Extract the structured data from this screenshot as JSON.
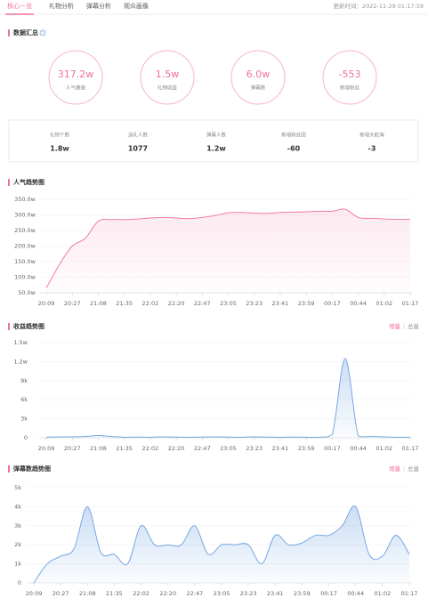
{
  "tabs": [
    "核心一览",
    "礼物分析",
    "弹幕分析",
    "观众画像"
  ],
  "update_time": "更新时间：2022-11-29 01:17:59",
  "summary": {
    "title": "数据汇总",
    "help": "?",
    "circles": [
      {
        "value": "317.2w",
        "label": "人气峰值"
      },
      {
        "value": "1.5w",
        "label": "礼物收益"
      },
      {
        "value": "6.0w",
        "label": "弹幕数"
      },
      {
        "value": "-553",
        "label": "新增粉丝"
      }
    ],
    "stats": [
      {
        "label": "礼物个数",
        "value": "1.8w"
      },
      {
        "label": "送礼人数",
        "value": "1077"
      },
      {
        "label": "弹幕人数",
        "value": "1.2w"
      },
      {
        "label": "新增粉丝团",
        "value": "-60"
      },
      {
        "label": "新增大航海",
        "value": "-3"
      }
    ]
  },
  "chart_data": [
    {
      "type": "line",
      "title": "人气趋势图",
      "color": "#f0729a",
      "grid": true,
      "categories": [
        "20:09",
        null,
        "20:27",
        null,
        "21:08",
        null,
        "21:35",
        null,
        "22:02",
        null,
        "22:20",
        null,
        "22:47",
        null,
        "23:05",
        null,
        "23:23",
        null,
        "23:41",
        null,
        "23:59",
        null,
        "00:17",
        null,
        "00:44",
        null,
        "01:02",
        null,
        "01:17"
      ],
      "values": [
        65,
        140,
        200,
        225,
        280,
        285,
        285,
        287,
        290,
        292,
        290,
        288,
        292,
        298,
        307,
        308,
        306,
        305,
        308,
        309,
        310,
        312,
        312,
        318,
        292,
        289,
        287,
        286,
        286
      ],
      "ylim": [
        50,
        350
      ],
      "yticks": [
        {
          "value": 50,
          "label": "50.0w"
        },
        {
          "value": 100,
          "label": "100.0w"
        },
        {
          "value": 150,
          "label": "150.0w"
        },
        {
          "value": 200,
          "label": "200.0w"
        },
        {
          "value": 250,
          "label": "250.0w"
        },
        {
          "value": 300,
          "label": "300.0w"
        },
        {
          "value": 350,
          "label": "350.0w"
        }
      ]
    },
    {
      "type": "line",
      "title": "收益趋势图",
      "toggle": [
        "增量",
        "总量"
      ],
      "color": "#6a9fe0",
      "grid": true,
      "categories": [
        "20:09",
        null,
        "20:27",
        null,
        "21:08",
        null,
        "21:35",
        null,
        "22:02",
        null,
        "22:20",
        null,
        "22:47",
        null,
        "23:05",
        null,
        "23:23",
        null,
        "23:41",
        null,
        "23:59",
        null,
        "00:17",
        null,
        "00:44",
        null,
        "01:02",
        null,
        "01:17"
      ],
      "values": [
        100,
        150,
        150,
        200,
        350,
        200,
        100,
        120,
        100,
        150,
        120,
        100,
        130,
        150,
        120,
        100,
        150,
        120,
        100,
        120,
        100,
        100,
        500,
        12500,
        300,
        200,
        150,
        100,
        100
      ],
      "ylim": [
        0,
        15000
      ],
      "yticks": [
        0,
        {
          "value": 3000,
          "label": "3k"
        },
        {
          "value": 6000,
          "label": "6k"
        },
        {
          "value": 9000,
          "label": "9k"
        },
        {
          "value": 12000,
          "label": "1.2w"
        },
        {
          "value": 15000,
          "label": "1.5w"
        }
      ]
    },
    {
      "type": "line",
      "title": "弹幕数趋势图",
      "toggle": [
        "增量",
        "总量"
      ],
      "color": "#6a9fe0",
      "grid": true,
      "categories": [
        "20:09",
        null,
        "20:27",
        null,
        "21:08",
        null,
        "21:35",
        null,
        "22:02",
        null,
        "22:20",
        null,
        "22:47",
        null,
        "23:05",
        null,
        "23:23",
        null,
        "23:41",
        null,
        "23:59",
        null,
        "00:17",
        null,
        "00:44",
        null,
        "01:02",
        null,
        "01:17"
      ],
      "values": [
        0,
        1000,
        1400,
        1800,
        4000,
        1600,
        1500,
        1000,
        3000,
        2000,
        2000,
        2000,
        3000,
        1500,
        2000,
        2000,
        2000,
        1000,
        2500,
        2000,
        2100,
        2500,
        2500,
        3000,
        4000,
        1500,
        1400,
        2500,
        1500
      ],
      "ylim": [
        0,
        5000
      ],
      "yticks": [
        0,
        {
          "value": 1000,
          "label": "1k"
        },
        {
          "value": 2000,
          "label": "2k"
        },
        {
          "value": 3000,
          "label": "3k"
        },
        {
          "value": 4000,
          "label": "4k"
        },
        {
          "value": 5000,
          "label": "5k"
        }
      ]
    }
  ]
}
